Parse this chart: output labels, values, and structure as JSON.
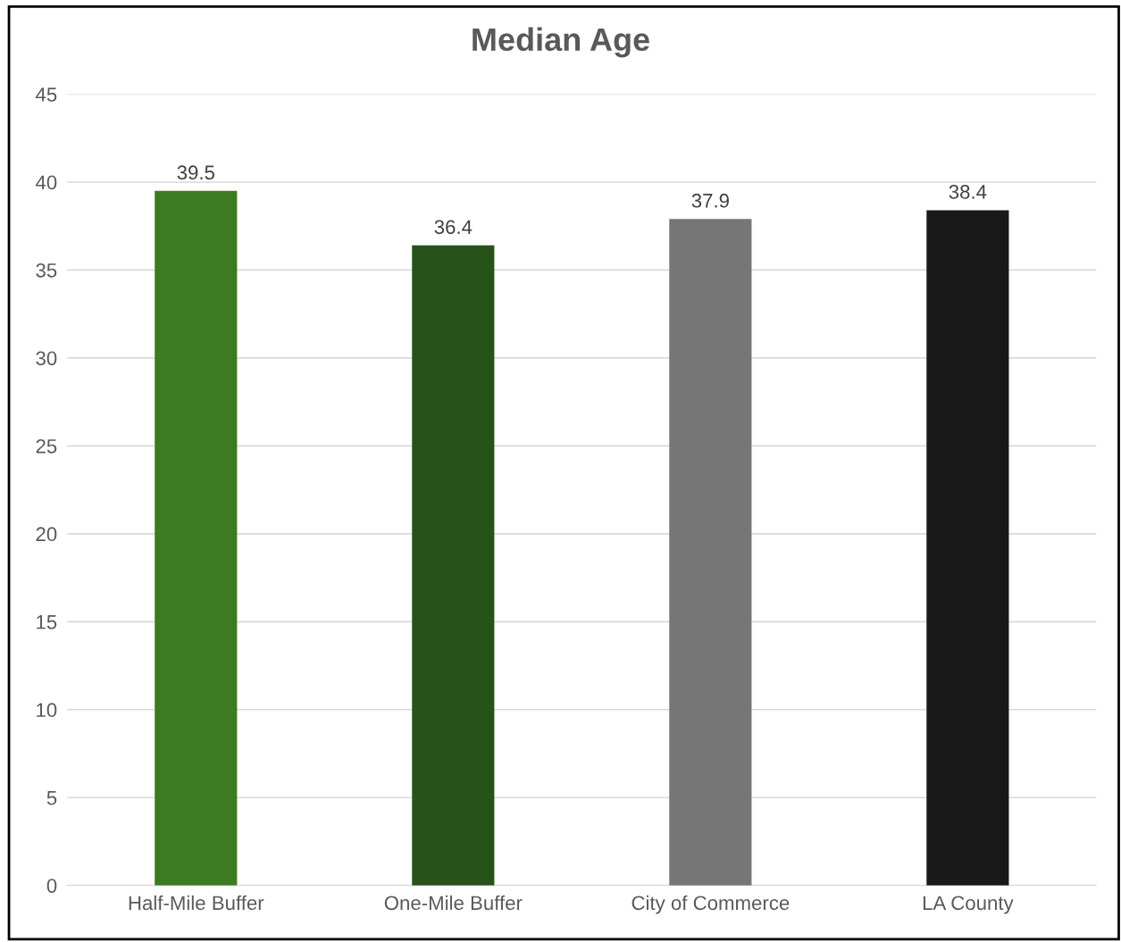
{
  "chart_data": {
    "type": "bar",
    "title": "Median Age",
    "categories": [
      "Half-Mile Buffer",
      "One-Mile Buffer",
      "City of Commerce",
      "LA County"
    ],
    "values": [
      39.5,
      36.4,
      37.9,
      38.4
    ],
    "colors": [
      "#3c7b22",
      "#27531a",
      "#767676",
      "#191919"
    ],
    "ylim": [
      0,
      45
    ],
    "yticks": [
      0,
      5,
      10,
      15,
      20,
      25,
      30,
      35,
      40,
      45
    ],
    "grid": "y",
    "data_labels": true,
    "legend": false
  }
}
